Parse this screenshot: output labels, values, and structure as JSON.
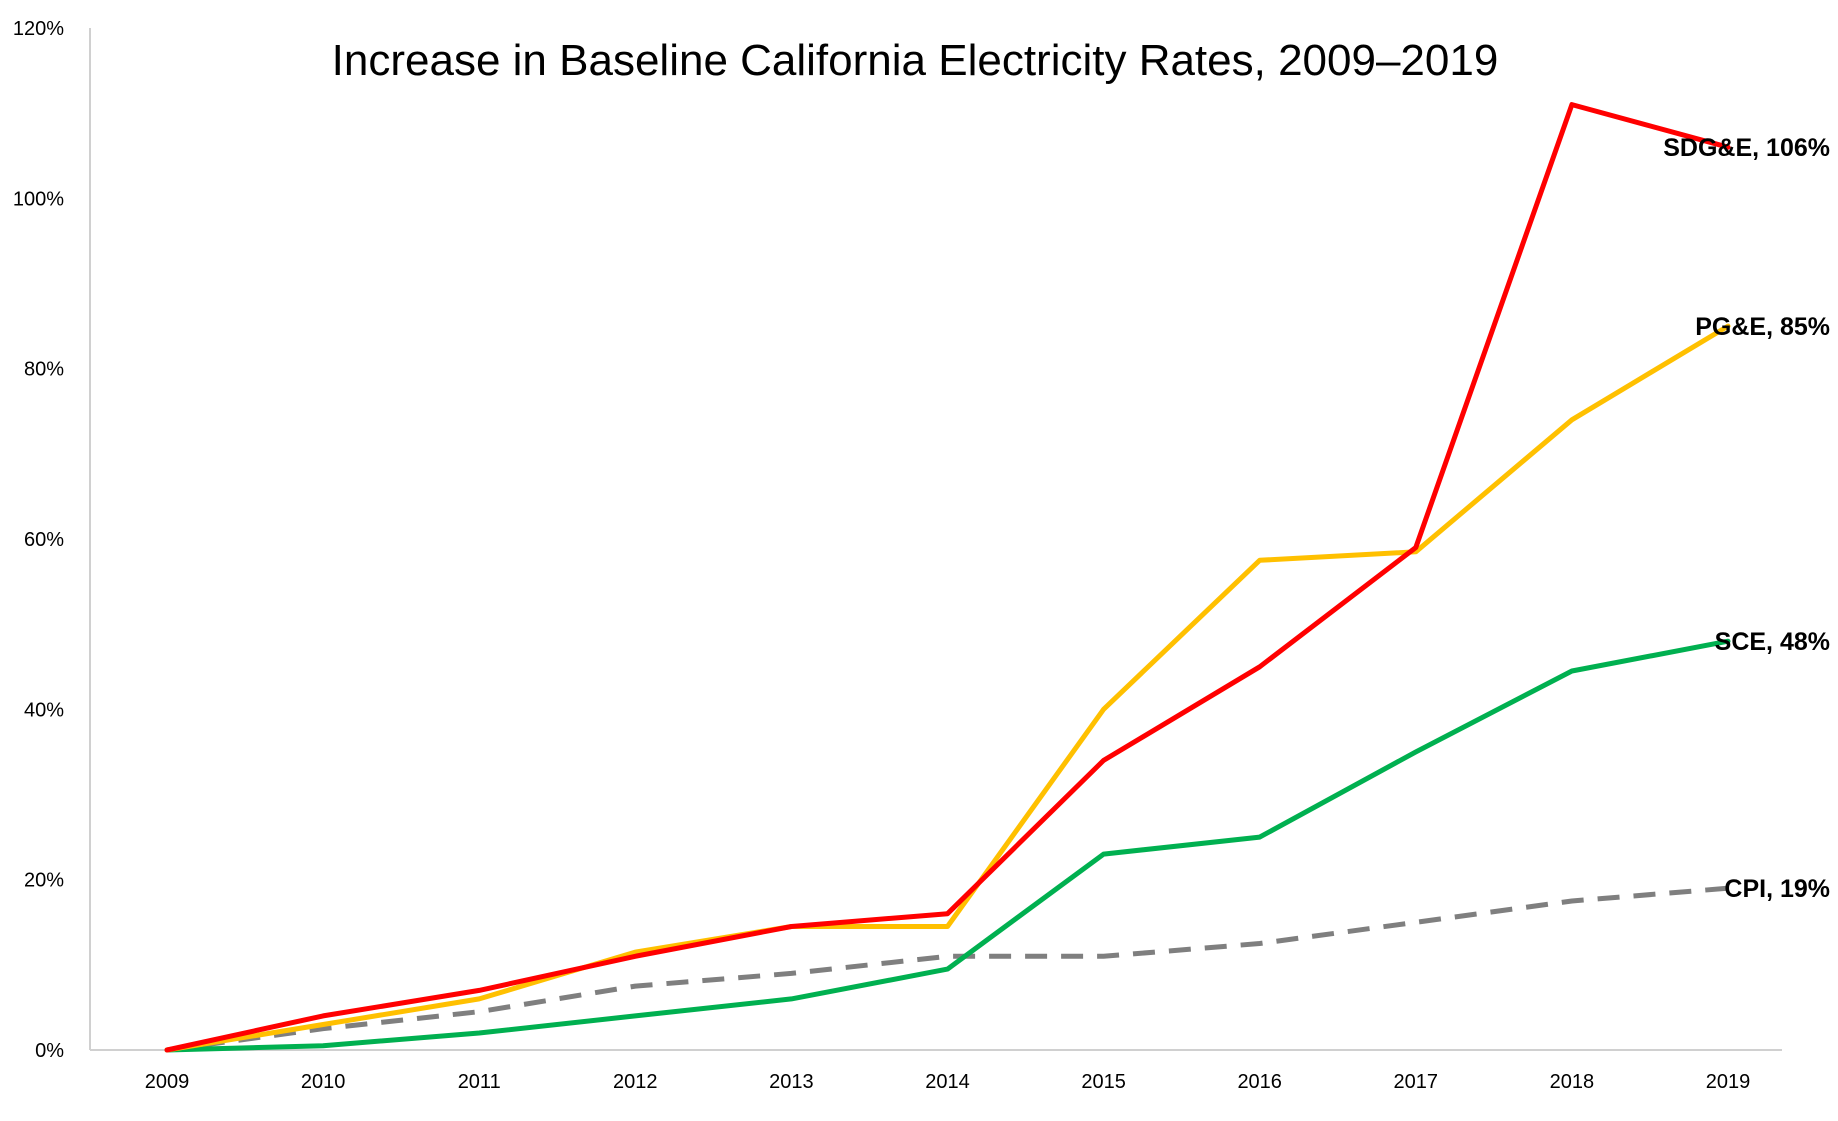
{
  "chart_data": {
    "type": "line",
    "title": "Increase in Baseline California Electricity Rates, 2009–2019",
    "xlabel": "",
    "ylabel": "",
    "categories": [
      "2009",
      "2010",
      "2011",
      "2012",
      "2013",
      "2014",
      "2015",
      "2016",
      "2017",
      "2018",
      "2019"
    ],
    "ylim": [
      0,
      120
    ],
    "yticks": [
      0,
      20,
      40,
      60,
      80,
      100,
      120
    ],
    "ytick_labels": [
      "0%",
      "20%",
      "40%",
      "60%",
      "80%",
      "100%",
      "120%"
    ],
    "grid": false,
    "legend": "none (series labeled at line ends, right)",
    "series": [
      {
        "name": "PG&E",
        "end_label": "PG&E, 85%",
        "color": "#FFC000",
        "dashed": false,
        "values": [
          0,
          3,
          6,
          11.5,
          14.5,
          14.5,
          40,
          57.5,
          58.5,
          74,
          85
        ]
      },
      {
        "name": "SDG&E",
        "end_label": "SDG&E, 106%",
        "color": "#FF0000",
        "dashed": false,
        "values": [
          0,
          4,
          7,
          11,
          14.5,
          16,
          34,
          45,
          59,
          111,
          106
        ]
      },
      {
        "name": "SCE",
        "end_label": "SCE, 48%",
        "color": "#00B050",
        "dashed": false,
        "values": [
          0,
          0.5,
          2,
          4,
          6,
          9.5,
          23,
          25,
          35,
          44.5,
          48
        ]
      },
      {
        "name": "CPI",
        "end_label": "CPI, 19%",
        "color": "#7F7F7F",
        "dashed": true,
        "values": [
          0,
          2.5,
          4.5,
          7.5,
          9,
          11,
          11,
          12.5,
          15,
          17.5,
          19
        ]
      }
    ]
  }
}
